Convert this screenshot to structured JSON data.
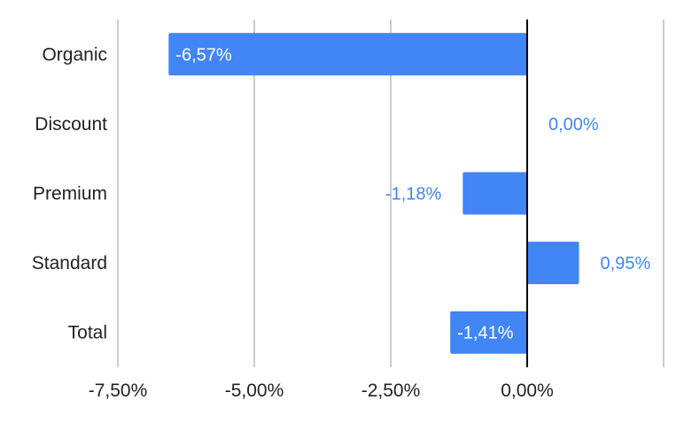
{
  "chart_data": {
    "type": "bar",
    "orientation": "horizontal",
    "categories": [
      "Organic",
      "Discount",
      "Premium",
      "Standard",
      "Total"
    ],
    "values": [
      -6.57,
      0.0,
      -1.18,
      0.95,
      -1.41
    ],
    "data_labels": [
      "-6,57%",
      "0,00%",
      "-1,18%",
      "0,95%",
      "-1,41%"
    ],
    "xlim": [
      -7.5,
      2.5
    ],
    "x_ticks": [
      -7.5,
      -5.0,
      -2.5,
      0.0
    ],
    "x_tick_labels": [
      "-7,50%",
      "-5,00%",
      "-2,50%",
      "0,00%"
    ],
    "grid": true,
    "legend": "none",
    "title": "",
    "xlabel": "",
    "ylabel": "",
    "bar_color": "#4285f4",
    "outside_label_color": "#4285f4",
    "axis_color": "#000000",
    "grid_color": "#cccccc"
  }
}
